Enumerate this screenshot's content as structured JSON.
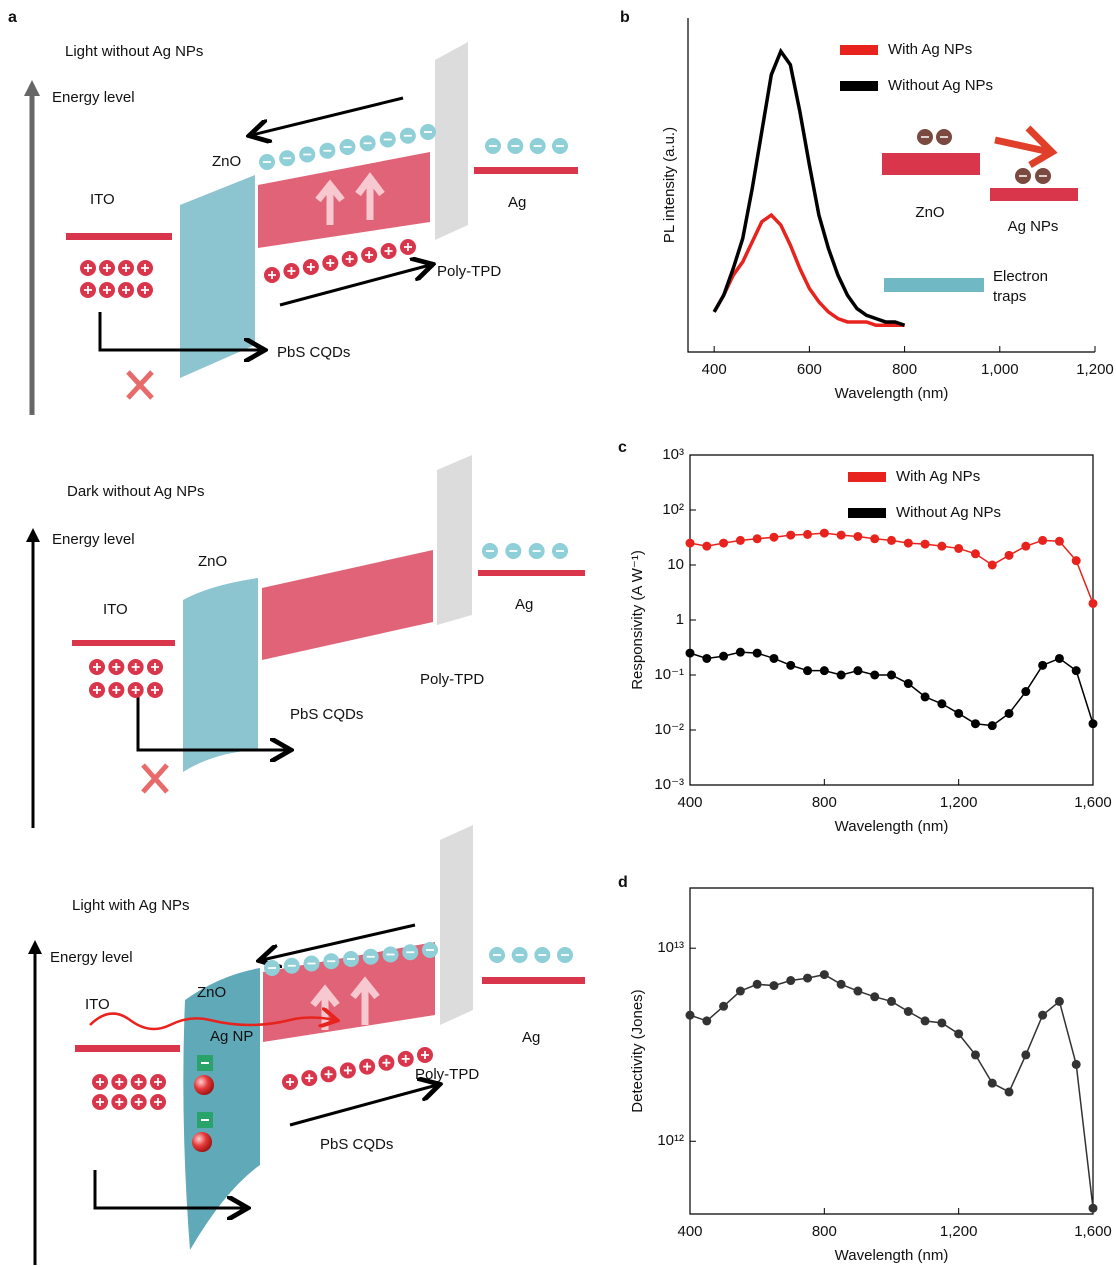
{
  "panel_labels": [
    "a",
    "b",
    "c",
    "d"
  ],
  "diagrams": [
    {
      "title": "Light without Ag NPs",
      "axis_label": "Energy level",
      "ito": "ITO",
      "zno": "ZnO",
      "ag": "Ag",
      "poly_tpd": "Poly-TPD",
      "pbs": "PbS CQDs"
    },
    {
      "title": "Dark without Ag NPs",
      "axis_label": "Energy level",
      "ito": "ITO",
      "zno": "ZnO",
      "ag": "Ag",
      "poly_tpd": "Poly-TPD",
      "pbs": "PbS CQDs"
    },
    {
      "title": "Light with Ag NPs",
      "axis_label": "Energy level",
      "ito": "ITO",
      "zno": "ZnO",
      "ag": "Ag",
      "poly_tpd": "Poly-TPD",
      "pbs": "PbS CQDs",
      "ag_np": "Ag NP"
    }
  ],
  "chart_data": [
    {
      "type": "line",
      "markers": false,
      "log_y": false,
      "xlabel": "Wavelength (nm)",
      "ylabel": "PL intensity (a.u.)",
      "xlim": [
        345,
        1200
      ],
      "xticks": [
        400,
        600,
        800,
        {
          "value": 1000,
          "label": "1,000"
        },
        {
          "value": 1200,
          "label": "1,200"
        }
      ],
      "ylim": [
        0,
        1
      ],
      "annotations": [
        "ZnO",
        "Ag NPs",
        "Electron traps"
      ],
      "x": [
        400,
        420,
        440,
        460,
        480,
        500,
        520,
        540,
        560,
        580,
        600,
        620,
        640,
        660,
        680,
        700,
        720,
        740,
        760,
        780,
        800
      ],
      "series": [
        {
          "name": "With Ag NPs",
          "color": "#e8231d",
          "values": [
            0.12,
            0.17,
            0.23,
            0.27,
            0.33,
            0.39,
            0.41,
            0.38,
            0.32,
            0.25,
            0.19,
            0.15,
            0.12,
            0.1,
            0.09,
            0.09,
            0.09,
            0.08,
            0.08,
            0.08,
            0.08
          ]
        },
        {
          "name": "Without Ag NPs",
          "color": "#000000",
          "values": [
            0.12,
            0.17,
            0.25,
            0.34,
            0.49,
            0.66,
            0.83,
            0.9,
            0.86,
            0.72,
            0.56,
            0.41,
            0.31,
            0.23,
            0.17,
            0.13,
            0.11,
            0.1,
            0.09,
            0.09,
            0.08
          ]
        }
      ]
    },
    {
      "type": "line",
      "markers": true,
      "log_y": true,
      "xlabel": "Wavelength (nm)",
      "ylabel": "Responsivity (A W⁻¹)",
      "xlim": [
        400,
        1600
      ],
      "xticks": [
        400,
        800,
        {
          "value": 1200,
          "label": "1,200"
        },
        {
          "value": 1600,
          "label": "1,600"
        }
      ],
      "ylim": [
        0.001,
        1000
      ],
      "yticks": [
        {
          "value": 1000,
          "label": "10³"
        },
        {
          "value": 100,
          "label": "10²"
        },
        10,
        1,
        {
          "value": 0.1,
          "label": "10⁻¹"
        },
        {
          "value": 0.01,
          "label": "10⁻²"
        },
        {
          "value": 0.001,
          "label": "10⁻³"
        }
      ],
      "x": [
        400,
        450,
        500,
        550,
        600,
        650,
        700,
        750,
        800,
        850,
        900,
        950,
        1000,
        1050,
        1100,
        1150,
        1200,
        1250,
        1300,
        1350,
        1400,
        1450,
        1500,
        1550,
        1600
      ],
      "series": [
        {
          "name": "With Ag NPs",
          "color": "#e8231d",
          "values": [
            25,
            22,
            25,
            28,
            30,
            32,
            35,
            36,
            38,
            35,
            33,
            30,
            28,
            25,
            24,
            22,
            20,
            16,
            10,
            15,
            22,
            28,
            27,
            12,
            2
          ]
        },
        {
          "name": "Without Ag NPs",
          "color": "#000000",
          "values": [
            0.25,
            0.2,
            0.22,
            0.26,
            0.25,
            0.2,
            0.15,
            0.12,
            0.12,
            0.1,
            0.12,
            0.1,
            0.1,
            0.07,
            0.04,
            0.03,
            0.02,
            0.013,
            0.012,
            0.02,
            0.05,
            0.15,
            0.2,
            0.12,
            0.013
          ]
        }
      ]
    },
    {
      "type": "line",
      "markers": true,
      "log_y": true,
      "xlabel": "Wavelength (nm)",
      "ylabel": "Detectivity (Jones)",
      "xlim": [
        400,
        1600
      ],
      "xticks": [
        400,
        800,
        {
          "value": 1200,
          "label": "1,200"
        },
        {
          "value": 1600,
          "label": "1,600"
        }
      ],
      "ylim": [
        420000000000,
        20500000000000
      ],
      "yticks": [
        {
          "value": 1000000000000,
          "label": "10¹²"
        },
        {
          "value": 10000000000000,
          "label": "10¹³"
        }
      ],
      "x": [
        400,
        450,
        500,
        550,
        600,
        650,
        700,
        750,
        800,
        850,
        900,
        950,
        1000,
        1050,
        1100,
        1150,
        1200,
        1250,
        1300,
        1350,
        1400,
        1450,
        1500,
        1550,
        1600
      ],
      "series": [
        {
          "color": "#333333",
          "values": [
            4500000000000,
            4200000000000,
            5000000000000,
            6000000000000,
            6500000000000,
            6400000000000,
            6800000000000,
            7000000000000,
            7300000000000,
            6500000000000,
            6000000000000,
            5600000000000,
            5300000000000,
            4700000000000,
            4200000000000,
            4100000000000,
            3600000000000,
            2800000000000,
            2000000000000,
            1800000000000,
            2800000000000,
            4500000000000,
            5300000000000,
            2500000000000,
            450000000000
          ]
        }
      ]
    }
  ]
}
